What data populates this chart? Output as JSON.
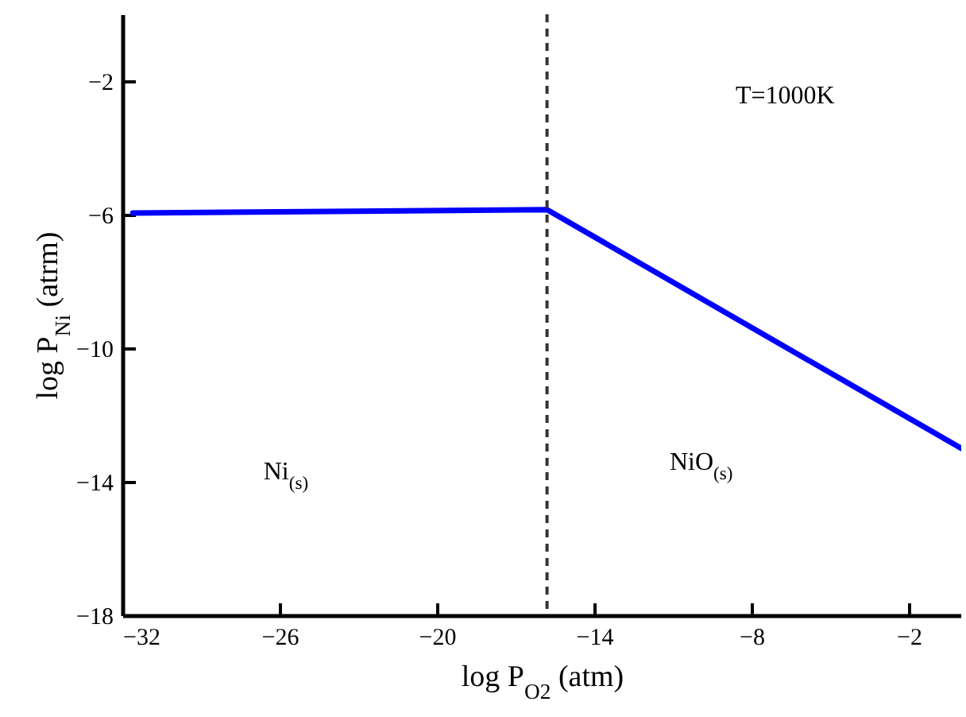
{
  "chart_data": {
    "type": "line",
    "xlabel": "log P$_{O2}$ (atm)",
    "ylabel": "log P$_{Ni}$ (atrm)",
    "series": [
      {
        "color": "#0000ff",
        "x": [
          -31.6,
          -15.8,
          0
        ],
        "values": [
          -5.95,
          -5.85,
          -13
        ],
        "line_style": "solid"
      }
    ],
    "xlim": [
      -32,
      0
    ],
    "xticks": [
      -32,
      -26,
      -20,
      -14,
      -8,
      -2
    ],
    "ylim": [
      -18,
      0
    ],
    "yticks": [
      -18,
      -14,
      -10,
      -6,
      -2
    ],
    "ref_lines": [
      {
        "axis": "x",
        "value": -15.8,
        "color": "#333333",
        "line_style": "dashed"
      }
    ],
    "annotations": [
      "T=1000K",
      "Ni$_{(s)}$",
      "NiO$_{(s)}$"
    ]
  }
}
